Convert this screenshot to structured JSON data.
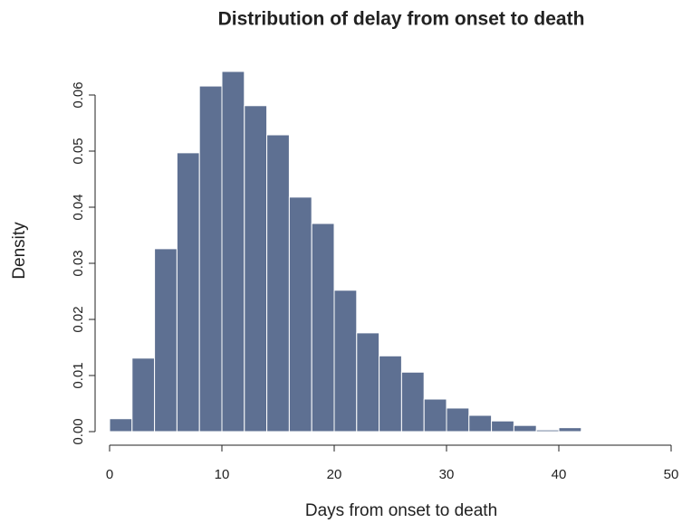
{
  "chart_data": {
    "type": "histogram",
    "title": "Distribution of delay from onset to death",
    "x_label": "Days from onset to death",
    "y_label": "Density",
    "bins": [
      0,
      2,
      4,
      6,
      8,
      10,
      12,
      14,
      16,
      18,
      20,
      22,
      24,
      26,
      28,
      30,
      32,
      34,
      36,
      38,
      40,
      42,
      44,
      46,
      48
    ],
    "values": [
      0.0023,
      0.0131,
      0.0326,
      0.0497,
      0.0616,
      0.0642,
      0.0581,
      0.0529,
      0.0418,
      0.0371,
      0.0252,
      0.0176,
      0.0135,
      0.0106,
      0.0058,
      0.0042,
      0.0029,
      0.0019,
      0.0011,
      0.0003,
      0.0007,
      0.0001,
      0,
      0.0001
    ],
    "color": "#5e7092",
    "xlim": [
      0,
      50
    ],
    "xticks": [
      0,
      10,
      20,
      30,
      40,
      50
    ],
    "ylim": [
      0,
      0.065
    ],
    "yticks": [
      {
        "value": 0,
        "label": "0.00"
      },
      0.01,
      0.02,
      0.03,
      0.04,
      0.05,
      0.06
    ],
    "grid": false
  }
}
